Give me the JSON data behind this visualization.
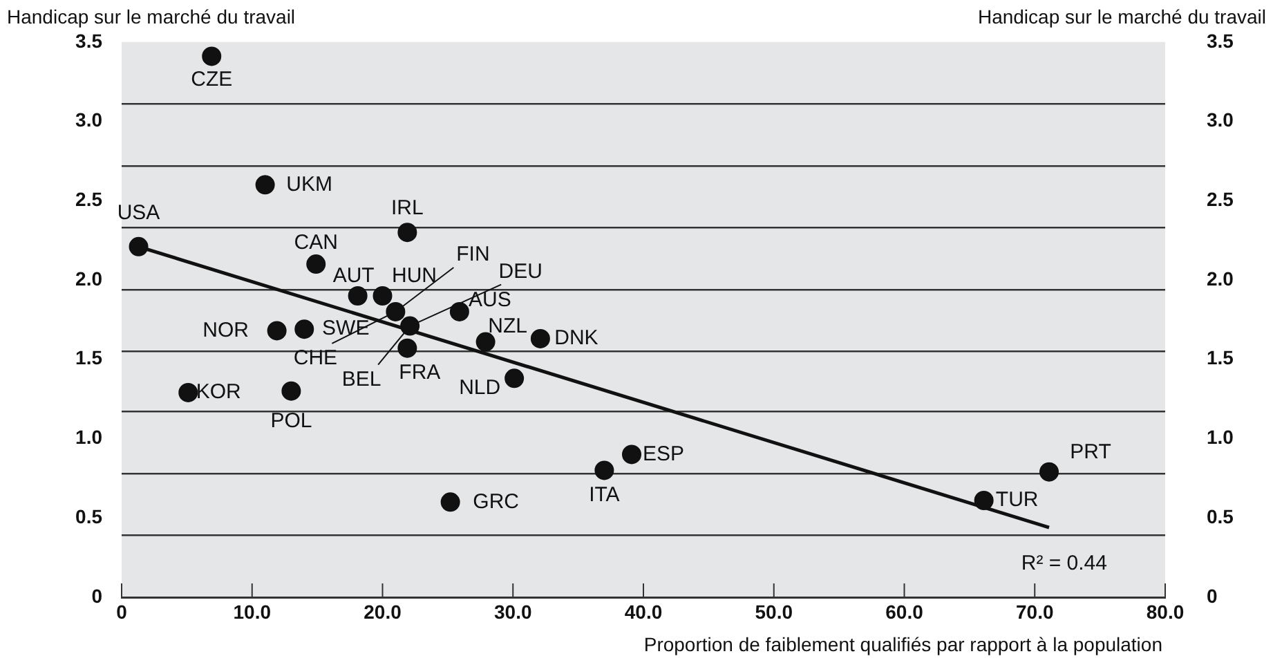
{
  "chart_data": {
    "type": "scatter",
    "xlabel": "Proportion de faiblement qualifiés par rapport à la population",
    "ylabel": "Handicap sur le marché du travail",
    "y2label": "Handicap sur le marché du travail",
    "xlim": [
      0,
      80
    ],
    "xticks": [
      0,
      {
        "value": 10,
        "label": "10.0"
      },
      {
        "value": 20,
        "label": "20.0"
      },
      {
        "value": 30,
        "label": "30.0"
      },
      {
        "value": 40,
        "label": "40.0"
      },
      {
        "value": 50,
        "label": "50.0"
      },
      {
        "value": 60,
        "label": "60.0"
      },
      {
        "value": 70,
        "label": "70.0"
      },
      {
        "value": 80,
        "label": "80.0"
      }
    ],
    "ylim": [
      0,
      3.5
    ],
    "yticks": [
      0,
      0.5,
      {
        "value": 1,
        "label": "1.0"
      },
      1.5,
      {
        "value": 2,
        "label": "2.0"
      },
      2.5,
      {
        "value": 3,
        "label": "3.0"
      },
      3.5,
      {
        "value": 0.39,
        "label": null
      },
      {
        "value": 0.78,
        "label": null
      },
      {
        "value": 1.17,
        "label": null
      },
      {
        "value": 1.55,
        "label": null
      },
      {
        "value": 1.94,
        "label": null
      },
      {
        "value": 2.33,
        "label": null
      },
      {
        "value": 2.72,
        "label": null
      },
      {
        "value": 3.11,
        "label": null
      }
    ],
    "y2lim": [
      0,
      3.5
    ],
    "y2ticks": [
      0,
      0.5,
      {
        "value": 1,
        "label": "1.0"
      },
      1.5,
      {
        "value": 2,
        "label": "2.0"
      },
      2.5,
      {
        "value": 3,
        "label": "3.0"
      },
      3.5
    ],
    "grid": "y",
    "legend": false,
    "marker": "circle",
    "series": [
      {
        "color": "#111111",
        "x": [
          6.9,
          11.0,
          21.9,
          1.3,
          14.9,
          18.1,
          20.0,
          21.0,
          22.1,
          25.9,
          11.9,
          14.0,
          21.9,
          27.9,
          32.1,
          30.1,
          5.1,
          13.0,
          25.2,
          37.0,
          39.1,
          66.1,
          71.1
        ],
        "values": [
          3.41,
          2.6,
          2.3,
          2.21,
          2.1,
          1.9,
          1.9,
          1.8,
          1.71,
          1.8,
          1.68,
          1.69,
          1.57,
          1.61,
          1.63,
          1.38,
          1.29,
          1.3,
          0.6,
          0.8,
          0.9,
          0.61,
          0.79
        ]
      },
      {
        "type": "line",
        "color": "#111111",
        "marker": "none",
        "x": [
          1.3,
          71.1
        ],
        "values": [
          2.21,
          0.44
        ]
      }
    ],
    "annotations": [
      {
        "text": "CZE",
        "x": 6.9,
        "y": 3.41
      },
      {
        "text": "UKM",
        "x": 11.0,
        "y": 2.6
      },
      {
        "text": "IRL",
        "x": 21.9,
        "y": 2.3
      },
      {
        "text": "USA",
        "x": 1.3,
        "y": 2.21
      },
      {
        "text": "CAN",
        "x": 14.9,
        "y": 2.1
      },
      {
        "text": "AUT",
        "x": 18.1,
        "y": 1.9
      },
      {
        "text": "HUN",
        "x": 20.0,
        "y": 1.9
      },
      {
        "text": "FIN",
        "x": 21.0,
        "y": 1.8
      },
      {
        "text": "CHE",
        "x": 21.0,
        "y": 1.8
      },
      {
        "text": "DEU",
        "x": 22.1,
        "y": 1.71
      },
      {
        "text": "BEL",
        "x": 22.1,
        "y": 1.71
      },
      {
        "text": "AUS",
        "x": 25.9,
        "y": 1.8
      },
      {
        "text": "NOR",
        "x": 11.9,
        "y": 1.68
      },
      {
        "text": "SWE",
        "x": 14.0,
        "y": 1.69
      },
      {
        "text": "FRA",
        "x": 21.9,
        "y": 1.57
      },
      {
        "text": "NZL",
        "x": 27.9,
        "y": 1.61
      },
      {
        "text": "DNK",
        "x": 32.1,
        "y": 1.63
      },
      {
        "text": "NLD",
        "x": 30.1,
        "y": 1.38
      },
      {
        "text": "KOR",
        "x": 5.1,
        "y": 1.29
      },
      {
        "text": "POL",
        "x": 13.0,
        "y": 1.3
      },
      {
        "text": "GRC",
        "x": 25.2,
        "y": 0.6
      },
      {
        "text": "ITA",
        "x": 37.0,
        "y": 0.8
      },
      {
        "text": "ESP",
        "x": 39.1,
        "y": 0.9
      },
      {
        "text": "TUR",
        "x": 66.1,
        "y": 0.61
      },
      {
        "text": "PRT",
        "x": 71.1,
        "y": 0.79
      },
      "R² = 0.44"
    ]
  }
}
